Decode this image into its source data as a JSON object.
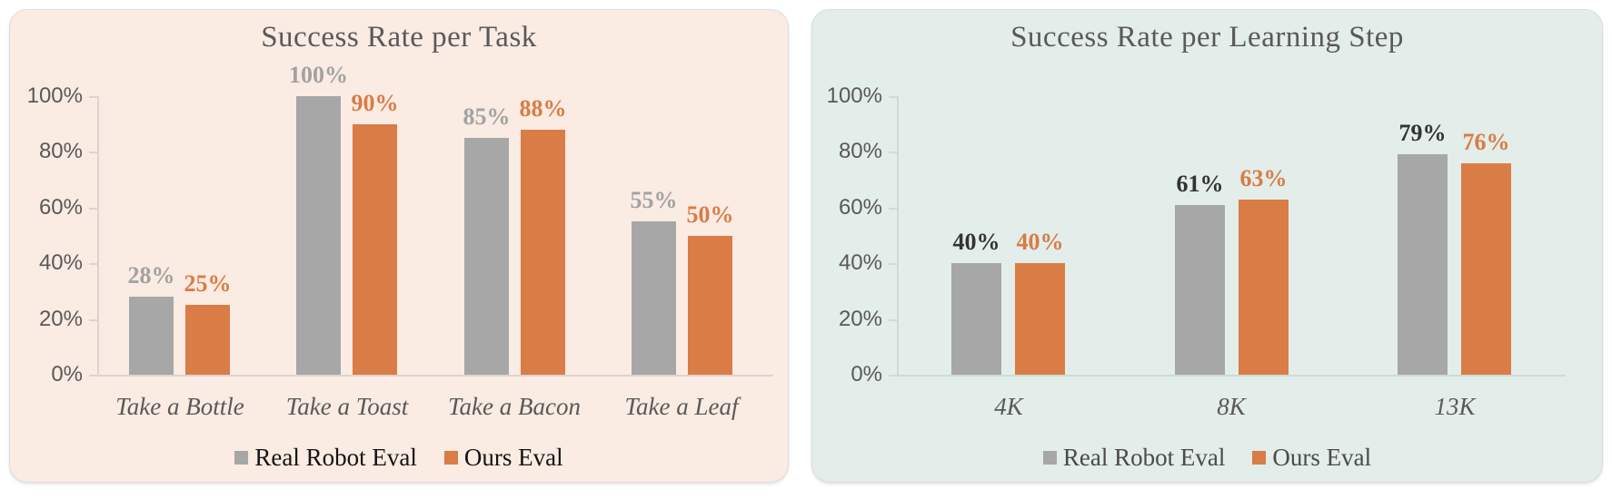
{
  "page": {
    "background": "#ffffff"
  },
  "chart_data": [
    {
      "type": "bar",
      "title": "Success Rate per Task",
      "categories": [
        "Take a Bottle",
        "Take a Toast",
        "Take a Bacon",
        "Take a Leaf"
      ],
      "series": [
        {
          "name": "Real Robot Eval",
          "values": [
            28,
            100,
            85,
            55
          ],
          "color": "#A7A7A7",
          "data_label_color": "#A2A2A2"
        },
        {
          "name": "Ours Eval",
          "values": [
            25,
            90,
            88,
            50
          ],
          "color": "#D97C46",
          "data_label_color": "#D97C46"
        }
      ],
      "data_labels": [
        [
          "28%",
          "100%",
          "85%",
          "55%"
        ],
        [
          "25%",
          "90%",
          "88%",
          "50%"
        ]
      ],
      "value_suffix": "%",
      "ylim": [
        0,
        100
      ],
      "yticks": [
        "0%",
        "20%",
        "40%",
        "60%",
        "80%",
        "100%"
      ],
      "grid": false,
      "legend_position": "bottom",
      "background": "#FAEBE3",
      "axis_color": "#DCD5CF",
      "tick_label_color": "#595959",
      "category_label_color": "#595959",
      "title_color": "#595959",
      "legend_text_color": "#141414"
    },
    {
      "type": "bar",
      "title": "Success Rate per Learning Step",
      "categories": [
        "4K",
        "8K",
        "13K"
      ],
      "series": [
        {
          "name": "Real Robot Eval",
          "values": [
            40,
            61,
            79
          ],
          "color": "#A7A7A7",
          "data_label_color": "#333333"
        },
        {
          "name": "Ours Eval",
          "values": [
            40,
            63,
            76
          ],
          "color": "#D97C46",
          "data_label_color": "#D97C46"
        }
      ],
      "data_labels": [
        [
          "40%",
          "61%",
          "79%"
        ],
        [
          "40%",
          "63%",
          "76%"
        ]
      ],
      "value_suffix": "%",
      "ylim": [
        0,
        100
      ],
      "yticks": [
        "0%",
        "20%",
        "40%",
        "60%",
        "80%",
        "100%"
      ],
      "grid": false,
      "legend_position": "bottom",
      "background": "#E3EDEA",
      "axis_color": "#CFDAD6",
      "tick_label_color": "#595959",
      "category_label_color": "#595959",
      "title_color": "#595959",
      "legend_text_color": "#4A4A4A"
    }
  ]
}
